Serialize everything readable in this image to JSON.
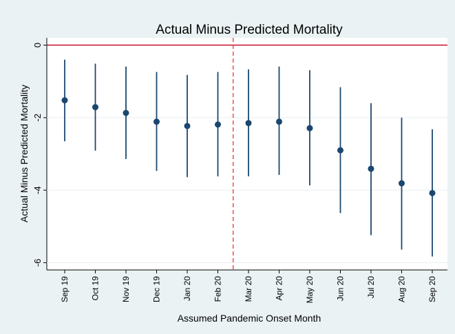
{
  "chart_data": {
    "type": "errorbar",
    "title": "Actual Minus Predicted Mortality",
    "x_label": "Assumed Pandemic Onset Month",
    "y_label": "Actual Minus Predicted Mortality",
    "categories": [
      "Sep 19",
      "Oct 19",
      "Nov 19",
      "Dec 19",
      "Jan 20",
      "Feb 20",
      "Mar 20",
      "Apr 20",
      "May 20",
      "Jun 20",
      "Jul 20",
      "Aug 20",
      "Sep 20"
    ],
    "values": [
      -1.52,
      -1.71,
      -1.87,
      -2.11,
      -2.23,
      -2.19,
      -2.15,
      -2.11,
      -2.29,
      -2.9,
      -3.41,
      -3.81,
      -4.08
    ],
    "lower": [
      -2.65,
      -2.91,
      -3.14,
      -3.47,
      -3.64,
      -3.62,
      -3.62,
      -3.58,
      -3.87,
      -4.63,
      -5.24,
      -5.64,
      -5.83
    ],
    "upper": [
      -0.4,
      -0.51,
      -0.59,
      -0.74,
      -0.82,
      -0.74,
      -0.67,
      -0.59,
      -0.69,
      -1.16,
      -1.6,
      -2.0,
      -2.32
    ],
    "color": "#1a476f",
    "ylim": [
      -6.2,
      0.2
    ],
    "yticks": [
      0,
      -2,
      -4,
      -6
    ],
    "grid": true,
    "hline": {
      "y": 0,
      "color": "#c00e2b"
    },
    "vline": {
      "between": [
        5,
        6
      ],
      "color": "#e8343a",
      "style": "dashed"
    }
  }
}
